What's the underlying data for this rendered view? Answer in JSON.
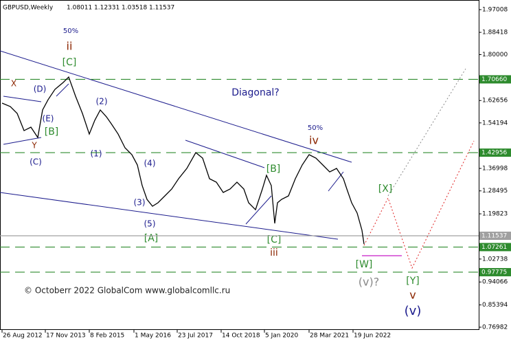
{
  "chart_data": {
    "type": "line",
    "title": "GBPUSD,Weekly",
    "ohlc": [
      1.08011,
      1.12331,
      1.03518,
      1.11537
    ],
    "x": [
      0,
      12,
      22,
      32,
      42,
      52,
      59,
      67,
      77,
      89,
      97,
      107,
      117,
      127,
      135,
      143,
      152,
      159,
      169,
      179,
      189,
      197,
      204,
      211,
      219,
      227,
      237,
      247,
      257,
      269,
      282,
      292,
      302,
      312,
      322,
      332,
      342,
      352,
      359,
      369,
      379,
      385,
      392,
      397,
      401,
      407,
      417,
      427,
      437,
      447,
      457,
      467,
      477,
      487,
      497,
      502,
      509,
      517,
      524,
      527
    ],
    "series": [
      {
        "name": "GBPUSD",
        "color": "#000000",
        "values": [
          1.6168,
          1.6038,
          1.5778,
          1.5128,
          1.5258,
          1.4868,
          1.5908,
          1.6297,
          1.6687,
          1.6947,
          1.7155,
          1.6427,
          1.5778,
          1.4998,
          1.5518,
          1.5908,
          1.5648,
          1.5388,
          1.4998,
          1.4479,
          1.4219,
          1.3829,
          1.305,
          1.253,
          1.227,
          1.24,
          1.266,
          1.292,
          1.331,
          1.3699,
          1.4297,
          1.4089,
          1.331,
          1.318,
          1.279,
          1.292,
          1.318,
          1.292,
          1.24,
          1.214,
          1.292,
          1.3439,
          1.305,
          1.1621,
          1.24,
          1.253,
          1.266,
          1.331,
          1.3829,
          1.4219,
          1.4089,
          1.3829,
          1.3569,
          1.3699,
          1.331,
          1.292,
          1.24,
          1.2011,
          1.1361,
          1.0841
        ]
      }
    ],
    "xlim": [
      -3,
      694
    ],
    "ylim": [
      0.7594,
      2.0065
    ],
    "xticks": [
      {
        "value": 0,
        "label": "26 Aug 2012"
      },
      {
        "value": 63,
        "label": "17 Nov 2013"
      },
      {
        "value": 127,
        "label": "8 Feb 2015"
      },
      {
        "value": 192,
        "label": "1 May 2016"
      },
      {
        "value": 255,
        "label": "23 Jul 2017"
      },
      {
        "value": 319,
        "label": "14 Oct 2018"
      },
      {
        "value": 382,
        "label": "5 Jan 2020"
      },
      {
        "value": 447,
        "label": "28 Mar 2021"
      },
      {
        "value": 511,
        "label": "19 Jun 2022"
      }
    ],
    "yticks": [
      {
        "value": 1.97008,
        "label": "1.97008"
      },
      {
        "value": 1.88418,
        "label": "1.88418"
      },
      {
        "value": 1.8,
        "label": "1.80000"
      },
      {
        "value": 1.62656,
        "label": "1.62656"
      },
      {
        "value": 1.54194,
        "label": "1.54194"
      },
      {
        "value": 1.36998,
        "label": "1.36998"
      },
      {
        "value": 1.28495,
        "label": "1.28495"
      },
      {
        "value": 1.19823,
        "label": "1.19823"
      },
      {
        "value": 1.02738,
        "label": "1.02738"
      },
      {
        "value": 0.94066,
        "label": "0.94066"
      },
      {
        "value": 0.85394,
        "label": "0.85394"
      },
      {
        "value": 0.76982,
        "label": "0.76982"
      }
    ],
    "levels": [
      {
        "value": 1.7066,
        "label": "1.70660",
        "color": "#2e8b2e"
      },
      {
        "value": 1.42956,
        "label": "1.42956",
        "color": "#2e8b2e"
      },
      {
        "value": 1.11537,
        "label": "1.11537",
        "color": "#a0a0a0"
      },
      {
        "value": 1.07261,
        "label": "1.07261",
        "color": "#2e8b2e"
      },
      {
        "value": 0.97775,
        "label": "0.97775",
        "color": "#2e8b2e"
      }
    ],
    "annotations": [
      "X",
      "ii",
      "50%",
      "[C]",
      "(D)",
      "(E)",
      "[B]",
      "Y",
      "(C)",
      "(2)",
      "(1)",
      "(4)",
      "(3)",
      "(5)",
      "[A]",
      "Diagonal?",
      "[B]",
      "[C]",
      "iii",
      "50%",
      "iv",
      "[X]",
      "[W]",
      "(v)?",
      "[Y]",
      "v",
      "(v)",
      "© Octoberr 2022 GlobalCom www.globalcomllc.ru"
    ]
  }
}
